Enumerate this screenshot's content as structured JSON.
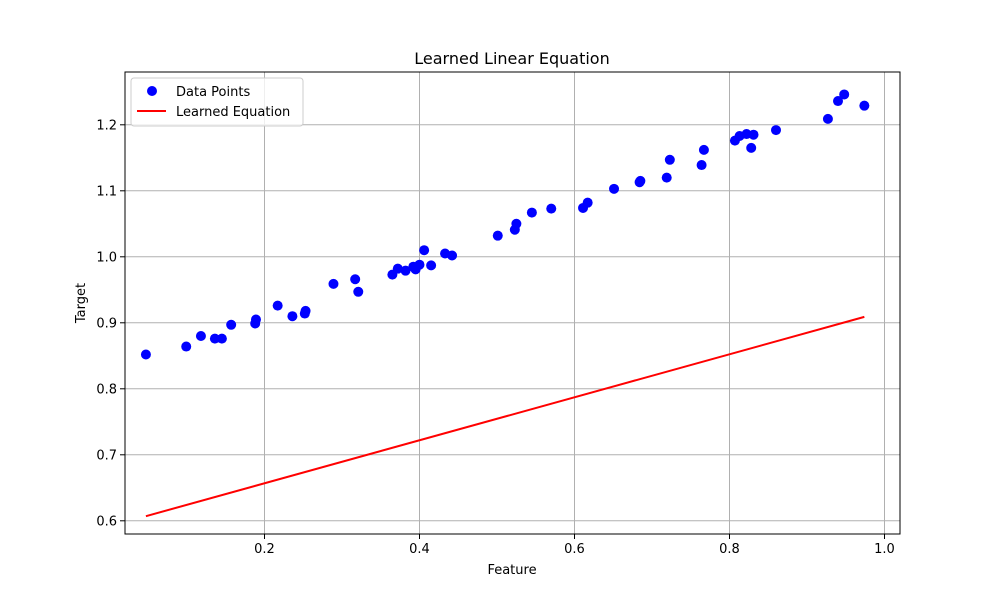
{
  "chart_data": {
    "type": "scatter",
    "title": "Learned Linear Equation",
    "xlabel": "Feature",
    "ylabel": "Target",
    "xlim": [
      0.02,
      1.02
    ],
    "ylim": [
      0.58,
      1.28
    ],
    "xticks": [
      0.2,
      0.4,
      0.6,
      0.8,
      1.0
    ],
    "xtick_labels": [
      "0.2",
      "0.4",
      "0.6",
      "0.8",
      "1.0"
    ],
    "yticks": [
      0.6,
      0.7,
      0.8,
      0.9,
      1.0,
      1.1,
      1.2
    ],
    "ytick_labels": [
      "0.6",
      "0.7",
      "0.8",
      "0.9",
      "1.0",
      "1.1",
      "1.2"
    ],
    "grid": true,
    "legend_position": "top-left",
    "series": [
      {
        "name": "Data Points",
        "kind": "scatter",
        "color": "#0000ff",
        "x": [
          0.047,
          0.099,
          0.118,
          0.136,
          0.145,
          0.157,
          0.188,
          0.189,
          0.217,
          0.236,
          0.252,
          0.253,
          0.289,
          0.317,
          0.321,
          0.365,
          0.372,
          0.382,
          0.392,
          0.395,
          0.4,
          0.406,
          0.415,
          0.433,
          0.442,
          0.501,
          0.523,
          0.525,
          0.545,
          0.57,
          0.611,
          0.617,
          0.651,
          0.684,
          0.685,
          0.719,
          0.723,
          0.764,
          0.767,
          0.807,
          0.813,
          0.822,
          0.828,
          0.831,
          0.86,
          0.927,
          0.94,
          0.948,
          0.974
        ],
        "y": [
          0.852,
          0.864,
          0.88,
          0.876,
          0.876,
          0.897,
          0.899,
          0.905,
          0.926,
          0.91,
          0.914,
          0.918,
          0.959,
          0.966,
          0.947,
          0.973,
          0.982,
          0.979,
          0.985,
          0.981,
          0.988,
          1.01,
          0.987,
          1.005,
          1.002,
          1.032,
          1.041,
          1.05,
          1.067,
          1.073,
          1.074,
          1.082,
          1.103,
          1.113,
          1.115,
          1.12,
          1.147,
          1.139,
          1.162,
          1.176,
          1.183,
          1.186,
          1.165,
          1.185,
          1.192,
          1.209,
          1.236,
          1.246,
          1.229
        ]
      },
      {
        "name": "Learned Equation",
        "kind": "line",
        "color": "#ff0000",
        "x": [
          0.047,
          0.974
        ],
        "y": [
          0.607,
          0.909
        ]
      }
    ]
  }
}
